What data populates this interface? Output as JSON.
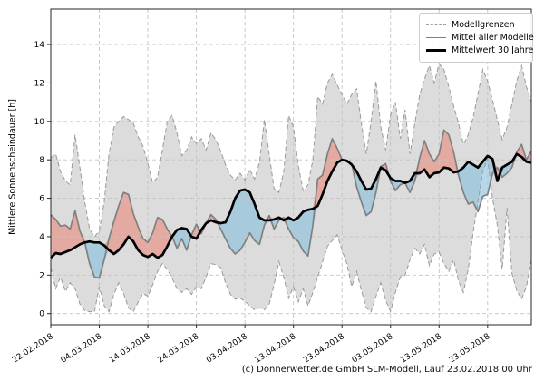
{
  "figure": {
    "ylabel": "Mittlere Sonnenscheindauer [h]",
    "caption": "(c) Donnerwetter.de GmbH SLM-Modell, Lauf 23.02.2018 00 Uhr",
    "legend": [
      {
        "label": "Modellgrenzen",
        "style": "dashed-gray-line"
      },
      {
        "label": "Mittel aller Modelle",
        "style": "solid-gray-line"
      },
      {
        "label": "Mittelwert 30 Jahre",
        "style": "thick-black-line"
      }
    ]
  },
  "chart_data": {
    "type": "line",
    "title": "",
    "xlabel": "",
    "ylabel": "Mittlere Sonnenscheindauer [h]",
    "x_unit": "daily values from 22.02.2018 (index 0) to 01.06.2018 (index 99)",
    "x_tick_labels": [
      "22.02.2018",
      "04.03.2018",
      "14.03.2018",
      "24.03.2018",
      "03.04.2018",
      "13.04.2018",
      "23.04.2018",
      "03.05.2018",
      "13.05.2018",
      "23.05.2018"
    ],
    "x_tick_indices": [
      0,
      10,
      20,
      30,
      40,
      50,
      60,
      70,
      80,
      90
    ],
    "y_ticks": [
      0,
      2,
      4,
      6,
      8,
      10,
      12,
      14
    ],
    "ylim": [
      -0.6,
      15.8
    ],
    "grid": true,
    "legend_position": "upper right",
    "series": [
      {
        "name": "Modellgrenzen (Obergrenze)",
        "role": "upper_bound",
        "values": [
          8.1,
          8.3,
          7.4,
          6.9,
          6.7,
          9.3,
          7.6,
          5.8,
          4.4,
          4.0,
          4.3,
          5.8,
          8.3,
          9.7,
          10.0,
          10.25,
          10.1,
          9.9,
          9.2,
          8.7,
          7.8,
          6.8,
          7.1,
          8.5,
          10.0,
          10.3,
          9.4,
          8.2,
          8.5,
          9.2,
          8.85,
          9.1,
          8.5,
          9.4,
          9.05,
          8.45,
          7.75,
          7.2,
          6.95,
          7.3,
          6.95,
          7.5,
          7.0,
          7.85,
          10.1,
          8.3,
          6.5,
          6.3,
          7.4,
          10.3,
          9.7,
          7.7,
          6.4,
          6.7,
          8.0,
          11.3,
          10.9,
          12.0,
          12.45,
          11.9,
          11.4,
          10.9,
          11.4,
          11.7,
          9.9,
          8.3,
          10.0,
          12.1,
          9.7,
          8.5,
          10.3,
          11.0,
          9.1,
          10.6,
          8.3,
          9.9,
          11.4,
          12.2,
          12.9,
          12.0,
          13.0,
          12.7,
          11.8,
          10.8,
          9.9,
          8.8,
          9.3,
          10.2,
          11.4,
          12.7,
          12.1,
          11.1,
          10.1,
          9.05,
          9.7,
          10.9,
          12.1,
          12.9,
          11.8,
          11.0
        ]
      },
      {
        "name": "Modellgrenzen (Untergrenze)",
        "role": "lower_bound",
        "values": [
          2.4,
          1.3,
          1.9,
          1.15,
          1.6,
          1.3,
          0.5,
          0.15,
          0.1,
          0.1,
          1.4,
          0.4,
          0.1,
          1.0,
          1.6,
          1.05,
          0.3,
          0.1,
          0.6,
          1.05,
          0.9,
          1.5,
          2.2,
          2.6,
          2.3,
          1.85,
          1.3,
          1.1,
          1.3,
          1.0,
          1.4,
          1.3,
          1.9,
          2.6,
          2.55,
          2.4,
          1.6,
          1.0,
          0.75,
          0.8,
          0.65,
          0.4,
          0.2,
          0.3,
          0.2,
          0.5,
          1.5,
          2.7,
          1.9,
          0.8,
          1.4,
          0.6,
          1.3,
          0.4,
          1.1,
          1.9,
          2.7,
          3.5,
          3.8,
          4.1,
          3.3,
          2.6,
          1.4,
          2.2,
          1.2,
          0.3,
          0.1,
          0.9,
          1.6,
          0.7,
          0.1,
          1.1,
          1.9,
          2.0,
          2.8,
          3.4,
          3.1,
          3.6,
          2.5,
          3.1,
          3.2,
          2.6,
          2.2,
          2.8,
          1.7,
          1.1,
          2.3,
          4.2,
          5.8,
          7.4,
          8.05,
          6.0,
          4.6,
          2.3,
          5.5,
          2.1,
          1.2,
          0.75,
          1.4,
          2.8
        ]
      },
      {
        "name": "Mittel aller Modelle",
        "role": "model_mean",
        "values": [
          5.15,
          4.9,
          4.55,
          4.6,
          4.4,
          5.35,
          4.3,
          3.7,
          2.6,
          1.9,
          1.85,
          2.8,
          3.9,
          4.8,
          5.6,
          6.3,
          6.2,
          5.2,
          4.5,
          3.9,
          3.7,
          4.2,
          5.0,
          4.9,
          4.4,
          4.0,
          3.4,
          3.9,
          3.3,
          4.1,
          4.65,
          4.15,
          4.7,
          5.15,
          4.9,
          4.4,
          3.9,
          3.4,
          3.1,
          3.3,
          3.7,
          4.2,
          3.8,
          3.6,
          4.6,
          5.1,
          4.4,
          4.85,
          5.0,
          4.4,
          3.95,
          3.75,
          3.25,
          3.0,
          4.6,
          7.0,
          7.2,
          8.3,
          9.1,
          8.6,
          8.0,
          7.9,
          7.8,
          6.6,
          5.8,
          5.1,
          5.3,
          6.3,
          7.65,
          7.8,
          6.9,
          6.4,
          6.7,
          6.8,
          6.3,
          6.9,
          8.1,
          9.0,
          8.3,
          7.9,
          8.3,
          9.55,
          9.3,
          8.4,
          7.2,
          6.3,
          5.7,
          5.8,
          5.3,
          6.1,
          6.2,
          7.3,
          7.6,
          7.1,
          7.3,
          7.6,
          8.4,
          8.8,
          8.0,
          8.45
        ]
      },
      {
        "name": "Mittelwert 30 Jahre",
        "role": "climate_mean",
        "values": [
          2.9,
          3.15,
          3.1,
          3.2,
          3.3,
          3.45,
          3.6,
          3.7,
          3.75,
          3.7,
          3.7,
          3.55,
          3.3,
          3.1,
          3.3,
          3.6,
          4.0,
          3.75,
          3.3,
          3.05,
          2.95,
          3.1,
          2.9,
          3.05,
          3.5,
          4.0,
          4.35,
          4.45,
          4.4,
          4.0,
          3.9,
          4.35,
          4.7,
          4.85,
          4.75,
          4.7,
          4.75,
          5.3,
          6.0,
          6.4,
          6.45,
          6.3,
          5.7,
          5.0,
          4.85,
          4.85,
          4.9,
          5.0,
          4.85,
          5.0,
          4.85,
          5.0,
          5.3,
          5.4,
          5.45,
          5.6,
          6.2,
          6.9,
          7.4,
          7.85,
          8.0,
          7.95,
          7.75,
          7.4,
          6.9,
          6.45,
          6.5,
          7.0,
          7.6,
          7.45,
          7.05,
          6.9,
          6.9,
          6.8,
          6.9,
          7.3,
          7.3,
          7.5,
          7.1,
          7.3,
          7.35,
          7.6,
          7.55,
          7.35,
          7.4,
          7.6,
          7.9,
          7.75,
          7.6,
          7.9,
          8.2,
          8.05,
          6.9,
          7.6,
          7.75,
          7.9,
          8.3,
          8.15,
          7.9,
          7.85
        ]
      }
    ],
    "colors": {
      "band": "#ababab",
      "band_edge": "#9a9a9a",
      "above_mean_fill": "#e9897a",
      "below_mean_fill": "#85bedd",
      "model_mean_line": "#808080",
      "climate_mean_line": "#000000",
      "grid": "#c3c3c3",
      "frame": "#262626"
    }
  }
}
